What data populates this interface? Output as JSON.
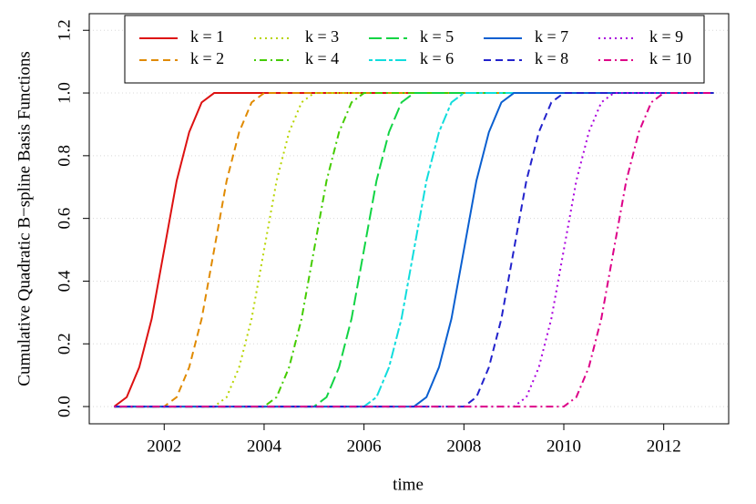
{
  "chart_data": {
    "type": "line",
    "xlabel": "time",
    "ylabel": "Cumulative Quadratic B−spline Basis Functions",
    "x": [
      2001,
      2001.25,
      2001.5,
      2001.75,
      2002,
      2002.25,
      2002.5,
      2002.75,
      2003,
      2003.25,
      2003.5,
      2003.75,
      2004,
      2004.25,
      2004.5,
      2004.75,
      2005,
      2005.25,
      2005.5,
      2005.75,
      2006,
      2006.25,
      2006.5,
      2006.75,
      2007,
      2007.25,
      2007.5,
      2007.75,
      2008,
      2008.25,
      2008.5,
      2008.75,
      2009,
      2009.25,
      2009.5,
      2009.75,
      2010,
      2010.25,
      2010.5,
      2010.75,
      2011,
      2011.25,
      2011.5,
      2011.75,
      2012,
      2012.25,
      2012.5,
      2012.75,
      2013
    ],
    "series": [
      {
        "name": "k = 1",
        "color": "#dd1111",
        "linestyle": "solid",
        "values": [
          0,
          0.03,
          0.125,
          0.28,
          0.5,
          0.72,
          0.875,
          0.97,
          1,
          1,
          1,
          1,
          1,
          1,
          1,
          1,
          1,
          1,
          1,
          1,
          1,
          1,
          1,
          1,
          1,
          1,
          1,
          1,
          1,
          1,
          1,
          1,
          1,
          1,
          1,
          1,
          1,
          1,
          1,
          1,
          1,
          1,
          1,
          1,
          1,
          1,
          1,
          1,
          1
        ]
      },
      {
        "name": "k = 2",
        "color": "#e08a00",
        "linestyle": "dashed",
        "values": [
          0,
          0,
          0,
          0,
          0,
          0.03,
          0.125,
          0.28,
          0.5,
          0.72,
          0.875,
          0.97,
          1,
          1,
          1,
          1,
          1,
          1,
          1,
          1,
          1,
          1,
          1,
          1,
          1,
          1,
          1,
          1,
          1,
          1,
          1,
          1,
          1,
          1,
          1,
          1,
          1,
          1,
          1,
          1,
          1,
          1,
          1,
          1,
          1,
          1,
          1,
          1,
          1
        ]
      },
      {
        "name": "k = 3",
        "color": "#b8d400",
        "linestyle": "dotted",
        "values": [
          0,
          0,
          0,
          0,
          0,
          0,
          0,
          0,
          0,
          0.03,
          0.125,
          0.28,
          0.5,
          0.72,
          0.875,
          0.97,
          1,
          1,
          1,
          1,
          1,
          1,
          1,
          1,
          1,
          1,
          1,
          1,
          1,
          1,
          1,
          1,
          1,
          1,
          1,
          1,
          1,
          1,
          1,
          1,
          1,
          1,
          1,
          1,
          1,
          1,
          1,
          1,
          1
        ]
      },
      {
        "name": "k = 4",
        "color": "#44cc00",
        "linestyle": "dotdash",
        "values": [
          0,
          0,
          0,
          0,
          0,
          0,
          0,
          0,
          0,
          0,
          0,
          0,
          0,
          0.03,
          0.125,
          0.28,
          0.5,
          0.72,
          0.875,
          0.97,
          1,
          1,
          1,
          1,
          1,
          1,
          1,
          1,
          1,
          1,
          1,
          1,
          1,
          1,
          1,
          1,
          1,
          1,
          1,
          1,
          1,
          1,
          1,
          1,
          1,
          1,
          1,
          1,
          1
        ]
      },
      {
        "name": "k = 5",
        "color": "#11d444",
        "linestyle": "longdash",
        "values": [
          0,
          0,
          0,
          0,
          0,
          0,
          0,
          0,
          0,
          0,
          0,
          0,
          0,
          0,
          0,
          0,
          0,
          0.03,
          0.125,
          0.28,
          0.5,
          0.72,
          0.875,
          0.97,
          1,
          1,
          1,
          1,
          1,
          1,
          1,
          1,
          1,
          1,
          1,
          1,
          1,
          1,
          1,
          1,
          1,
          1,
          1,
          1,
          1,
          1,
          1,
          1,
          1
        ]
      },
      {
        "name": "k = 6",
        "color": "#11dddd",
        "linestyle": "twodash",
        "values": [
          0,
          0,
          0,
          0,
          0,
          0,
          0,
          0,
          0,
          0,
          0,
          0,
          0,
          0,
          0,
          0,
          0,
          0,
          0,
          0,
          0,
          0.03,
          0.125,
          0.28,
          0.5,
          0.72,
          0.875,
          0.97,
          1,
          1,
          1,
          1,
          1,
          1,
          1,
          1,
          1,
          1,
          1,
          1,
          1,
          1,
          1,
          1,
          1,
          1,
          1,
          1,
          1
        ]
      },
      {
        "name": "k = 7",
        "color": "#0a5fd0",
        "linestyle": "solid",
        "values": [
          0,
          0,
          0,
          0,
          0,
          0,
          0,
          0,
          0,
          0,
          0,
          0,
          0,
          0,
          0,
          0,
          0,
          0,
          0,
          0,
          0,
          0,
          0,
          0,
          0,
          0.03,
          0.125,
          0.28,
          0.5,
          0.72,
          0.875,
          0.97,
          1,
          1,
          1,
          1,
          1,
          1,
          1,
          1,
          1,
          1,
          1,
          1,
          1,
          1,
          1,
          1,
          1
        ]
      },
      {
        "name": "k = 8",
        "color": "#2222cc",
        "linestyle": "dashed",
        "values": [
          0,
          0,
          0,
          0,
          0,
          0,
          0,
          0,
          0,
          0,
          0,
          0,
          0,
          0,
          0,
          0,
          0,
          0,
          0,
          0,
          0,
          0,
          0,
          0,
          0,
          0,
          0,
          0,
          0,
          0.03,
          0.125,
          0.28,
          0.5,
          0.72,
          0.875,
          0.97,
          1,
          1,
          1,
          1,
          1,
          1,
          1,
          1,
          1,
          1,
          1,
          1,
          1
        ]
      },
      {
        "name": "k = 9",
        "color": "#aa00dd",
        "linestyle": "dotted",
        "values": [
          0,
          0,
          0,
          0,
          0,
          0,
          0,
          0,
          0,
          0,
          0,
          0,
          0,
          0,
          0,
          0,
          0,
          0,
          0,
          0,
          0,
          0,
          0,
          0,
          0,
          0,
          0,
          0,
          0,
          0,
          0,
          0,
          0,
          0.03,
          0.125,
          0.28,
          0.5,
          0.72,
          0.875,
          0.97,
          1,
          1,
          1,
          1,
          1,
          1,
          1,
          1,
          1
        ]
      },
      {
        "name": "k = 10",
        "color": "#dd0088",
        "linestyle": "dotdash",
        "values": [
          0,
          0,
          0,
          0,
          0,
          0,
          0,
          0,
          0,
          0,
          0,
          0,
          0,
          0,
          0,
          0,
          0,
          0,
          0,
          0,
          0,
          0,
          0,
          0,
          0,
          0,
          0,
          0,
          0,
          0,
          0,
          0,
          0,
          0,
          0,
          0,
          0,
          0.03,
          0.125,
          0.28,
          0.5,
          0.72,
          0.875,
          0.97,
          1,
          1,
          1,
          1,
          1
        ]
      }
    ],
    "xlim": [
      2000.5,
      2013.3
    ],
    "ylim": [
      -0.055,
      1.253
    ],
    "xticks": [
      2002,
      2004,
      2006,
      2008,
      2010,
      2012
    ],
    "yticks": [
      {
        "value": 0,
        "label": "0.0"
      },
      {
        "value": 0.2,
        "label": "0.2"
      },
      {
        "value": 0.4,
        "label": "0.4"
      },
      {
        "value": 0.6,
        "label": "0.6"
      },
      {
        "value": 0.8,
        "label": "0.8"
      },
      {
        "value": 1,
        "label": "1.0"
      },
      {
        "value": 1.2,
        "label": "1.2"
      }
    ],
    "grid": true,
    "legend": "top"
  }
}
